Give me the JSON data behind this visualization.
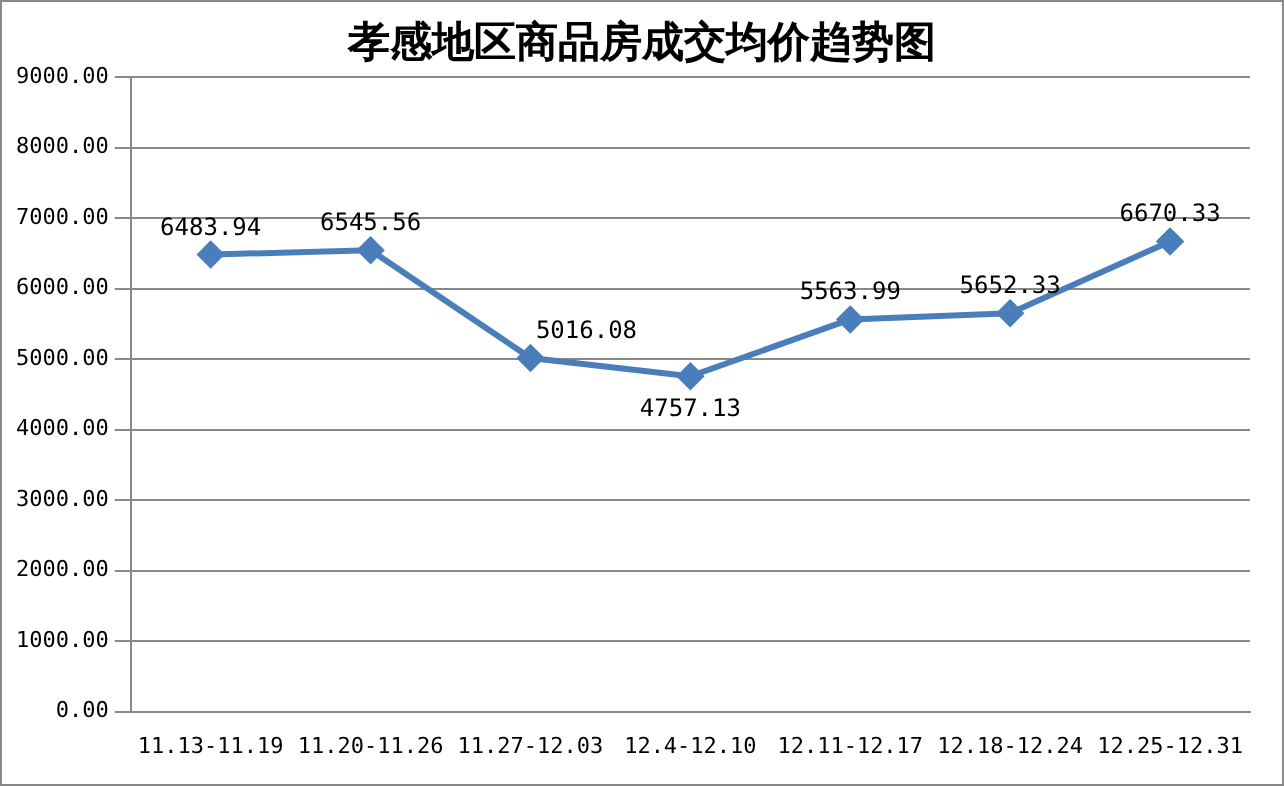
{
  "chart_data": {
    "type": "line",
    "title": "孝感地区商品房成交均价趋势图",
    "categories": [
      "11.13-11.19",
      "11.20-11.26",
      "11.27-12.03",
      "12.4-12.10",
      "12.11-12.17",
      "12.18-12.24",
      "12.25-12.31"
    ],
    "values": [
      6483.94,
      6545.56,
      5016.08,
      4757.13,
      5563.99,
      5652.33,
      6670.33
    ],
    "color": "#4a7ebb",
    "marker": "diamond",
    "line_style": "solid",
    "data_labels": true,
    "grid": "y",
    "legend": false,
    "ylim": [
      0,
      9000
    ],
    "yticks": [
      {
        "value": 0,
        "label": "0.00"
      },
      {
        "value": 1000,
        "label": "1000.00"
      },
      {
        "value": 2000,
        "label": "2000.00"
      },
      {
        "value": 3000,
        "label": "3000.00"
      },
      {
        "value": 4000,
        "label": "4000.00"
      },
      {
        "value": 5000,
        "label": "5000.00"
      },
      {
        "value": 6000,
        "label": "6000.00"
      },
      {
        "value": 7000,
        "label": "7000.00"
      },
      {
        "value": 8000,
        "label": "8000.00"
      },
      {
        "value": 9000,
        "label": "9000.00"
      }
    ]
  }
}
